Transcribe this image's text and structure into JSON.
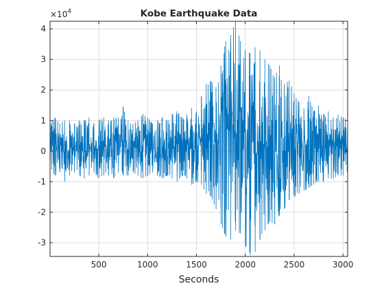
{
  "chart_data": {
    "type": "line",
    "title": "Kobe Earthquake Data",
    "xlabel": "Seconds",
    "ylabel": "",
    "xlim": [
      1,
      3048
    ],
    "ylim": [
      -3.45,
      4.25
    ],
    "y_multiplier": "×10",
    "y_multiplier_exponent": "4",
    "grid": true,
    "line_color": "#0072BD",
    "x_ticks": [
      500,
      1000,
      1500,
      2000,
      2500,
      3000
    ],
    "x_tick_labels": [
      "500",
      "1000",
      "1500",
      "2000",
      "2500",
      "3000"
    ],
    "y_ticks": [
      -3,
      -2,
      -1,
      0,
      1,
      2,
      3,
      4
    ],
    "y_tick_labels": [
      "-3",
      "-2",
      "-1",
      "0",
      "1",
      "2",
      "3",
      "4"
    ],
    "series": [
      {
        "x": [
          1,
          50,
          100,
          150,
          200,
          250,
          300,
          350,
          400,
          450,
          500,
          550,
          600,
          650,
          700,
          750,
          800,
          850,
          900,
          950,
          1000,
          1050,
          1100,
          1150,
          1200,
          1250,
          1300,
          1350,
          1400,
          1450,
          1500,
          1550,
          1600,
          1650,
          1700,
          1750,
          1800,
          1850,
          1900,
          1950,
          2000,
          2050,
          2100,
          2150,
          2200,
          2250,
          2300,
          2350,
          2400,
          2450,
          2500,
          2550,
          2600,
          2650,
          2700,
          2750,
          2800,
          2850,
          2900,
          2950,
          3000,
          3048
        ],
        "y_max": [
          0.9,
          1.1,
          0.9,
          1.0,
          1.0,
          0.9,
          1.0,
          1.0,
          1.1,
          0.9,
          1.0,
          1.1,
          1.0,
          1.1,
          1.1,
          1.45,
          1.0,
          0.9,
          1.0,
          1.2,
          1.1,
          0.9,
          1.0,
          1.1,
          1.0,
          1.2,
          1.3,
          1.1,
          1.2,
          1.4,
          1.3,
          1.8,
          2.2,
          2.3,
          2.1,
          2.8,
          3.6,
          3.8,
          4.25,
          3.6,
          3.3,
          3.2,
          3.4,
          3.3,
          3.0,
          2.8,
          2.4,
          2.8,
          2.2,
          2.3,
          1.9,
          1.6,
          1.4,
          1.8,
          1.3,
          1.5,
          1.2,
          1.3,
          1.1,
          1.2,
          1.1,
          1.1
        ],
        "y_min": [
          -0.5,
          -0.8,
          -0.7,
          -1.0,
          -0.8,
          -0.7,
          -0.8,
          -0.9,
          -0.8,
          -0.7,
          -0.9,
          -0.8,
          -0.8,
          -0.9,
          -0.7,
          -0.8,
          -0.8,
          -0.7,
          -0.8,
          -0.9,
          -0.8,
          -0.7,
          -0.8,
          -0.9,
          -0.8,
          -0.9,
          -1.0,
          -0.8,
          -0.9,
          -1.1,
          -1.0,
          -1.1,
          -1.4,
          -1.5,
          -1.9,
          -2.4,
          -2.8,
          -2.9,
          -2.6,
          -2.7,
          -3.1,
          -3.4,
          -3.3,
          -2.9,
          -2.6,
          -2.3,
          -2.4,
          -2.1,
          -1.9,
          -1.6,
          -1.5,
          -1.4,
          -1.3,
          -1.2,
          -1.1,
          -1.0,
          -1.0,
          -0.9,
          -0.9,
          -0.8,
          -0.8,
          -0.7
        ]
      }
    ]
  }
}
